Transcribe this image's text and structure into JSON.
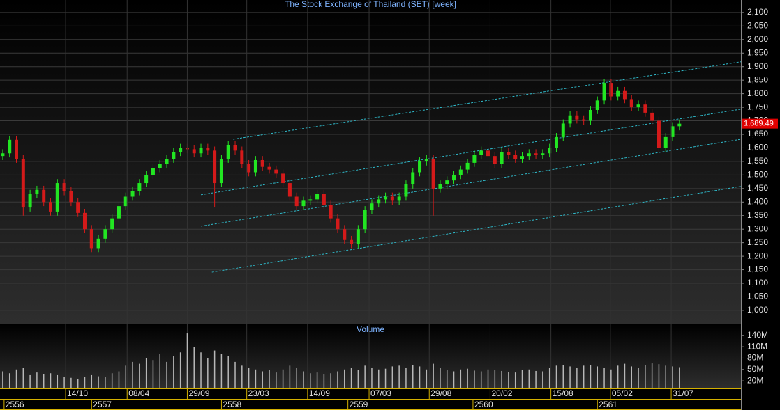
{
  "chart_data": {
    "type": "candlestick",
    "title": "The Stock Exchange of Thailand (SET) [week]",
    "up_color": "#22e622",
    "down_color": "#d41a1a",
    "xlim": [
      -0.4,
      108
    ],
    "ylim": [
      951,
      2146
    ],
    "yticks": [
      {
        "value": 1000,
        "label": "1,000"
      },
      {
        "value": 1050,
        "label": "1,050"
      },
      {
        "value": 1100,
        "label": "1,100"
      },
      {
        "value": 1150,
        "label": "1,150"
      },
      {
        "value": 1200,
        "label": "1,200"
      },
      {
        "value": 1250,
        "label": "1,250"
      },
      {
        "value": 1300,
        "label": "1,300"
      },
      {
        "value": 1350,
        "label": "1,350"
      },
      {
        "value": 1400,
        "label": "1,400"
      },
      {
        "value": 1450,
        "label": "1,450"
      },
      {
        "value": 1500,
        "label": "1,500"
      },
      {
        "value": 1550,
        "label": "1,550"
      },
      {
        "value": 1600,
        "label": "1,600"
      },
      {
        "value": 1650,
        "label": "1,650"
      },
      {
        "value": 1700,
        "label": "1,700"
      },
      {
        "value": 1750,
        "label": "1,750"
      },
      {
        "value": 1800,
        "label": "1,800"
      },
      {
        "value": 1850,
        "label": "1,850"
      },
      {
        "value": 1900,
        "label": "1,900"
      },
      {
        "value": 1950,
        "label": "1,950"
      },
      {
        "value": 2000,
        "label": "2,000"
      },
      {
        "value": 2050,
        "label": "2,050"
      },
      {
        "value": 2100,
        "label": "2,100"
      }
    ],
    "grid": true,
    "open": [
      1570,
      1580,
      1630,
      1560,
      1380,
      1430,
      1445,
      1400,
      1365,
      1470,
      1440,
      1400,
      1360,
      1300,
      1230,
      1265,
      1300,
      1340,
      1385,
      1420,
      1440,
      1470,
      1500,
      1525,
      1540,
      1560,
      1585,
      1600,
      1595,
      1580,
      1600,
      1590,
      1470,
      1560,
      1610,
      1590,
      1540,
      1510,
      1555,
      1530,
      1520,
      1505,
      1470,
      1420,
      1385,
      1405,
      1410,
      1430,
      1390,
      1340,
      1300,
      1260,
      1245,
      1300,
      1370,
      1395,
      1410,
      1420,
      1405,
      1420,
      1465,
      1510,
      1550,
      1560,
      1450,
      1465,
      1480,
      1500,
      1520,
      1545,
      1575,
      1590,
      1570,
      1540,
      1585,
      1575,
      1560,
      1570,
      1580,
      1575,
      1580,
      1600,
      1640,
      1690,
      1720,
      1705,
      1700,
      1740,
      1775,
      1840,
      1790,
      1810,
      1780,
      1750,
      1760,
      1730,
      1700,
      1600,
      1640,
      1680
    ],
    "high": [
      1595,
      1645,
      1645,
      1575,
      1445,
      1460,
      1460,
      1415,
      1485,
      1485,
      1455,
      1415,
      1375,
      1315,
      1280,
      1315,
      1355,
      1400,
      1435,
      1455,
      1485,
      1515,
      1540,
      1555,
      1575,
      1600,
      1615,
      1615,
      1610,
      1615,
      1615,
      1605,
      1575,
      1625,
      1625,
      1605,
      1555,
      1570,
      1570,
      1545,
      1535,
      1520,
      1485,
      1435,
      1420,
      1425,
      1445,
      1445,
      1405,
      1355,
      1315,
      1275,
      1315,
      1385,
      1410,
      1425,
      1435,
      1435,
      1435,
      1480,
      1525,
      1565,
      1575,
      1575,
      1480,
      1495,
      1515,
      1535,
      1560,
      1590,
      1605,
      1605,
      1585,
      1600,
      1600,
      1590,
      1585,
      1595,
      1595,
      1595,
      1615,
      1655,
      1705,
      1735,
      1735,
      1720,
      1755,
      1790,
      1855,
      1855,
      1825,
      1825,
      1795,
      1775,
      1775,
      1745,
      1715,
      1655,
      1695,
      1705
    ],
    "low": [
      1555,
      1565,
      1545,
      1350,
      1365,
      1415,
      1385,
      1350,
      1350,
      1425,
      1385,
      1345,
      1285,
      1215,
      1215,
      1250,
      1285,
      1325,
      1370,
      1405,
      1425,
      1455,
      1485,
      1510,
      1525,
      1545,
      1570,
      1580,
      1565,
      1565,
      1575,
      1380,
      1455,
      1545,
      1575,
      1525,
      1495,
      1495,
      1515,
      1505,
      1490,
      1455,
      1405,
      1370,
      1370,
      1390,
      1395,
      1375,
      1325,
      1285,
      1245,
      1230,
      1230,
      1285,
      1355,
      1380,
      1395,
      1390,
      1390,
      1405,
      1450,
      1495,
      1535,
      1350,
      1435,
      1450,
      1465,
      1485,
      1505,
      1530,
      1560,
      1555,
      1525,
      1525,
      1560,
      1545,
      1545,
      1555,
      1560,
      1560,
      1565,
      1585,
      1625,
      1675,
      1690,
      1685,
      1685,
      1725,
      1760,
      1775,
      1775,
      1765,
      1735,
      1735,
      1715,
      1685,
      1585,
      1585,
      1625,
      1665
    ],
    "close": [
      1580,
      1630,
      1560,
      1380,
      1430,
      1445,
      1400,
      1365,
      1470,
      1440,
      1400,
      1360,
      1300,
      1230,
      1265,
      1300,
      1340,
      1385,
      1420,
      1440,
      1470,
      1500,
      1525,
      1540,
      1560,
      1585,
      1600,
      1595,
      1580,
      1600,
      1590,
      1470,
      1560,
      1610,
      1590,
      1540,
      1510,
      1555,
      1530,
      1520,
      1505,
      1470,
      1420,
      1385,
      1405,
      1410,
      1430,
      1390,
      1340,
      1300,
      1260,
      1245,
      1300,
      1370,
      1395,
      1410,
      1420,
      1405,
      1420,
      1465,
      1510,
      1550,
      1560,
      1450,
      1465,
      1480,
      1500,
      1520,
      1545,
      1575,
      1590,
      1570,
      1540,
      1585,
      1575,
      1560,
      1570,
      1580,
      1575,
      1580,
      1600,
      1640,
      1690,
      1720,
      1705,
      1700,
      1740,
      1775,
      1840,
      1790,
      1810,
      1780,
      1750,
      1760,
      1730,
      1700,
      1600,
      1640,
      1680,
      1689.49
    ],
    "last_price": {
      "value": 1689.49,
      "label": "1,689.49"
    },
    "trendlines": [
      {
        "x": [
          33.7,
          108
        ],
        "y": [
          1632,
          1918
        ]
      },
      {
        "x": [
          29,
          108
        ],
        "y": [
          1427,
          1743
        ]
      },
      {
        "x": [
          29,
          108
        ],
        "y": [
          1311,
          1632
        ]
      },
      {
        "x": [
          30.6,
          108
        ],
        "y": [
          1141,
          1458
        ]
      }
    ],
    "x_labels": [
      {
        "value": 9.2,
        "label": "14/10"
      },
      {
        "value": 18.2,
        "label": "08/04"
      },
      {
        "value": 27,
        "label": "29/09"
      },
      {
        "value": 35.7,
        "label": "23/03"
      },
      {
        "value": 44.6,
        "label": "14/09"
      },
      {
        "value": 53.6,
        "label": "07/03"
      },
      {
        "value": 62.4,
        "label": "29/08"
      },
      {
        "value": 71.3,
        "label": "20/02"
      },
      {
        "value": 80.2,
        "label": "15/08"
      },
      {
        "value": 88.9,
        "label": "05/02"
      },
      {
        "value": 97.8,
        "label": "31/07"
      }
    ],
    "year_labels": [
      {
        "value": 0.2,
        "label": "2556"
      },
      {
        "value": 13,
        "label": "2557"
      },
      {
        "value": 32,
        "label": "2558"
      },
      {
        "value": 50.5,
        "label": "2559"
      },
      {
        "value": 68.8,
        "label": "2560"
      },
      {
        "value": 87,
        "label": "2561"
      }
    ],
    "volume": {
      "title": "Volume",
      "color": "#b8b8b8",
      "ylim": [
        0,
        169
      ],
      "yticks": [
        {
          "value": 20,
          "label": "20M"
        },
        {
          "value": 50,
          "label": "50M"
        },
        {
          "value": 80,
          "label": "80M"
        },
        {
          "value": 110,
          "label": "110M"
        },
        {
          "value": 140,
          "label": "140M"
        }
      ],
      "values": [
        45,
        40,
        50,
        55,
        35,
        42,
        38,
        40,
        35,
        30,
        28,
        25,
        30,
        35,
        32,
        30,
        40,
        45,
        60,
        70,
        65,
        80,
        75,
        90,
        70,
        85,
        95,
        145,
        110,
        95,
        80,
        100,
        90,
        85,
        70,
        60,
        55,
        50,
        45,
        48,
        42,
        50,
        60,
        55,
        45,
        40,
        42,
        38,
        40,
        45,
        50,
        55,
        48,
        60,
        55,
        50,
        52,
        58,
        60,
        55,
        62,
        58,
        50,
        65,
        55,
        48,
        45,
        50,
        52,
        47,
        45,
        50,
        48,
        46,
        44,
        42,
        48,
        50,
        46,
        45,
        55,
        60,
        62,
        58,
        55,
        60,
        62,
        58,
        55,
        50,
        60,
        65,
        58,
        55,
        62,
        66,
        64,
        60,
        58,
        56
      ]
    }
  }
}
